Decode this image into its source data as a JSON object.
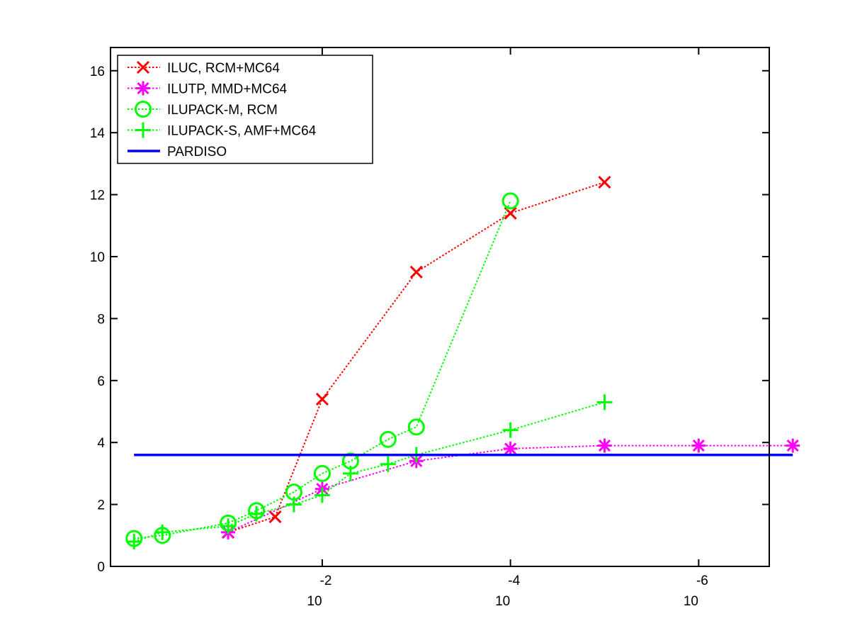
{
  "chart_data": {
    "type": "line",
    "title": "",
    "xlabel": "",
    "ylabel": "",
    "x_scale": "log",
    "x_reversed": true,
    "xlim": [
      1.778,
      1.778e-07
    ],
    "ylim": [
      0,
      16.75
    ],
    "x_ticks": [
      {
        "value": 0.01,
        "base": "10",
        "exponent": "-2"
      },
      {
        "value": 0.0001,
        "base": "10",
        "exponent": "-4"
      },
      {
        "value": 1e-06,
        "base": "10",
        "exponent": "-6"
      }
    ],
    "y_ticks": [
      "0",
      "2",
      "4",
      "6",
      "8",
      "10",
      "12",
      "14",
      "16"
    ],
    "grid": false,
    "legend_position": "top-left",
    "series": [
      {
        "name": "ILUC, RCM+MC64",
        "color": "#ff0000",
        "marker": "x",
        "linestyle": "dotted",
        "x": [
          0.1,
          0.03162,
          0.01,
          0.001,
          0.0001,
          1e-05
        ],
        "y": [
          1.1,
          1.6,
          5.4,
          9.5,
          11.4,
          12.4
        ]
      },
      {
        "name": "ILUTP, MMD+MC64",
        "color": "#ff00ff",
        "marker": "star",
        "linestyle": "dotted",
        "x": [
          0.1,
          0.01,
          0.001,
          0.0001,
          1e-05,
          1e-06,
          1e-07
        ],
        "y": [
          1.1,
          2.5,
          3.4,
          3.8,
          3.9,
          3.9,
          3.9
        ]
      },
      {
        "name": "ILUPACK-M, RCM",
        "color": "#00ff00",
        "marker": "circle",
        "linestyle": "dotted",
        "x": [
          1.0,
          0.5,
          0.1,
          0.05,
          0.02,
          0.01,
          0.005,
          0.002,
          0.001,
          0.0001
        ],
        "y": [
          0.9,
          1.0,
          1.4,
          1.8,
          2.4,
          3.0,
          3.4,
          4.1,
          4.5,
          11.8
        ]
      },
      {
        "name": "ILUPACK-S, AMF+MC64",
        "color": "#00ff00",
        "marker": "plus",
        "linestyle": "dotted",
        "x": [
          1.0,
          0.5,
          0.1,
          0.05,
          0.02,
          0.01,
          0.005,
          0.002,
          0.001,
          0.0001,
          1e-05
        ],
        "y": [
          0.8,
          1.1,
          1.3,
          1.7,
          2.0,
          2.3,
          3.0,
          3.3,
          3.6,
          4.4,
          5.3
        ]
      },
      {
        "name": "PARDISO",
        "color": "#0000ff",
        "marker": "none",
        "linestyle": "solid",
        "x": [
          1.0,
          1e-07
        ],
        "y": [
          3.6,
          3.6
        ]
      }
    ]
  }
}
